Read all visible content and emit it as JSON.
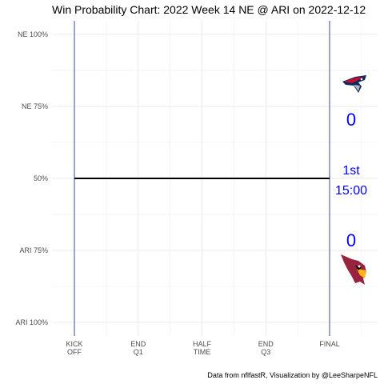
{
  "chart_data": {
    "type": "line",
    "title": "Win Probability Chart: 2022 Week 14 NE @ ARI on 2022-12-12",
    "caption": "Data from nflfastR, Visualization by @LeeSharpeNFL",
    "y_ticks": [
      {
        "value": 100,
        "label": "NE 100%"
      },
      {
        "value": 75,
        "label": "NE 75%"
      },
      {
        "value": 50,
        "label": "50%"
      },
      {
        "value": 25,
        "label": "ARI 75%"
      },
      {
        "value": 0,
        "label": "ARI 100%"
      }
    ],
    "x_ticks": [
      {
        "value": 0,
        "line1": "KICK",
        "line2": "OFF"
      },
      {
        "value": 900,
        "line1": "END",
        "line2": "Q1"
      },
      {
        "value": 1800,
        "line1": "HALF",
        "line2": "TIME"
      },
      {
        "value": 2700,
        "line1": "END",
        "line2": "Q3"
      },
      {
        "value": 3600,
        "line1": "FINAL",
        "line2": ""
      }
    ],
    "xlim": [
      0,
      3600
    ],
    "ylim": [
      0,
      100
    ],
    "series": [
      {
        "x": [
          0,
          3600
        ],
        "y": [
          50,
          50
        ]
      }
    ],
    "grid": true,
    "game_state": {
      "away_team": {
        "abbr": "NE",
        "score": "0",
        "logo": "patriots-logo"
      },
      "home_team": {
        "abbr": "ARI",
        "score": "0",
        "logo": "cardinals-logo"
      },
      "quarter": "1st",
      "clock": "15:00"
    },
    "colors": {
      "wp_line": "#000000",
      "boundary_lines": "#3b4a8c",
      "grid": "#ebebeb",
      "score_text": "#0000ff"
    }
  }
}
